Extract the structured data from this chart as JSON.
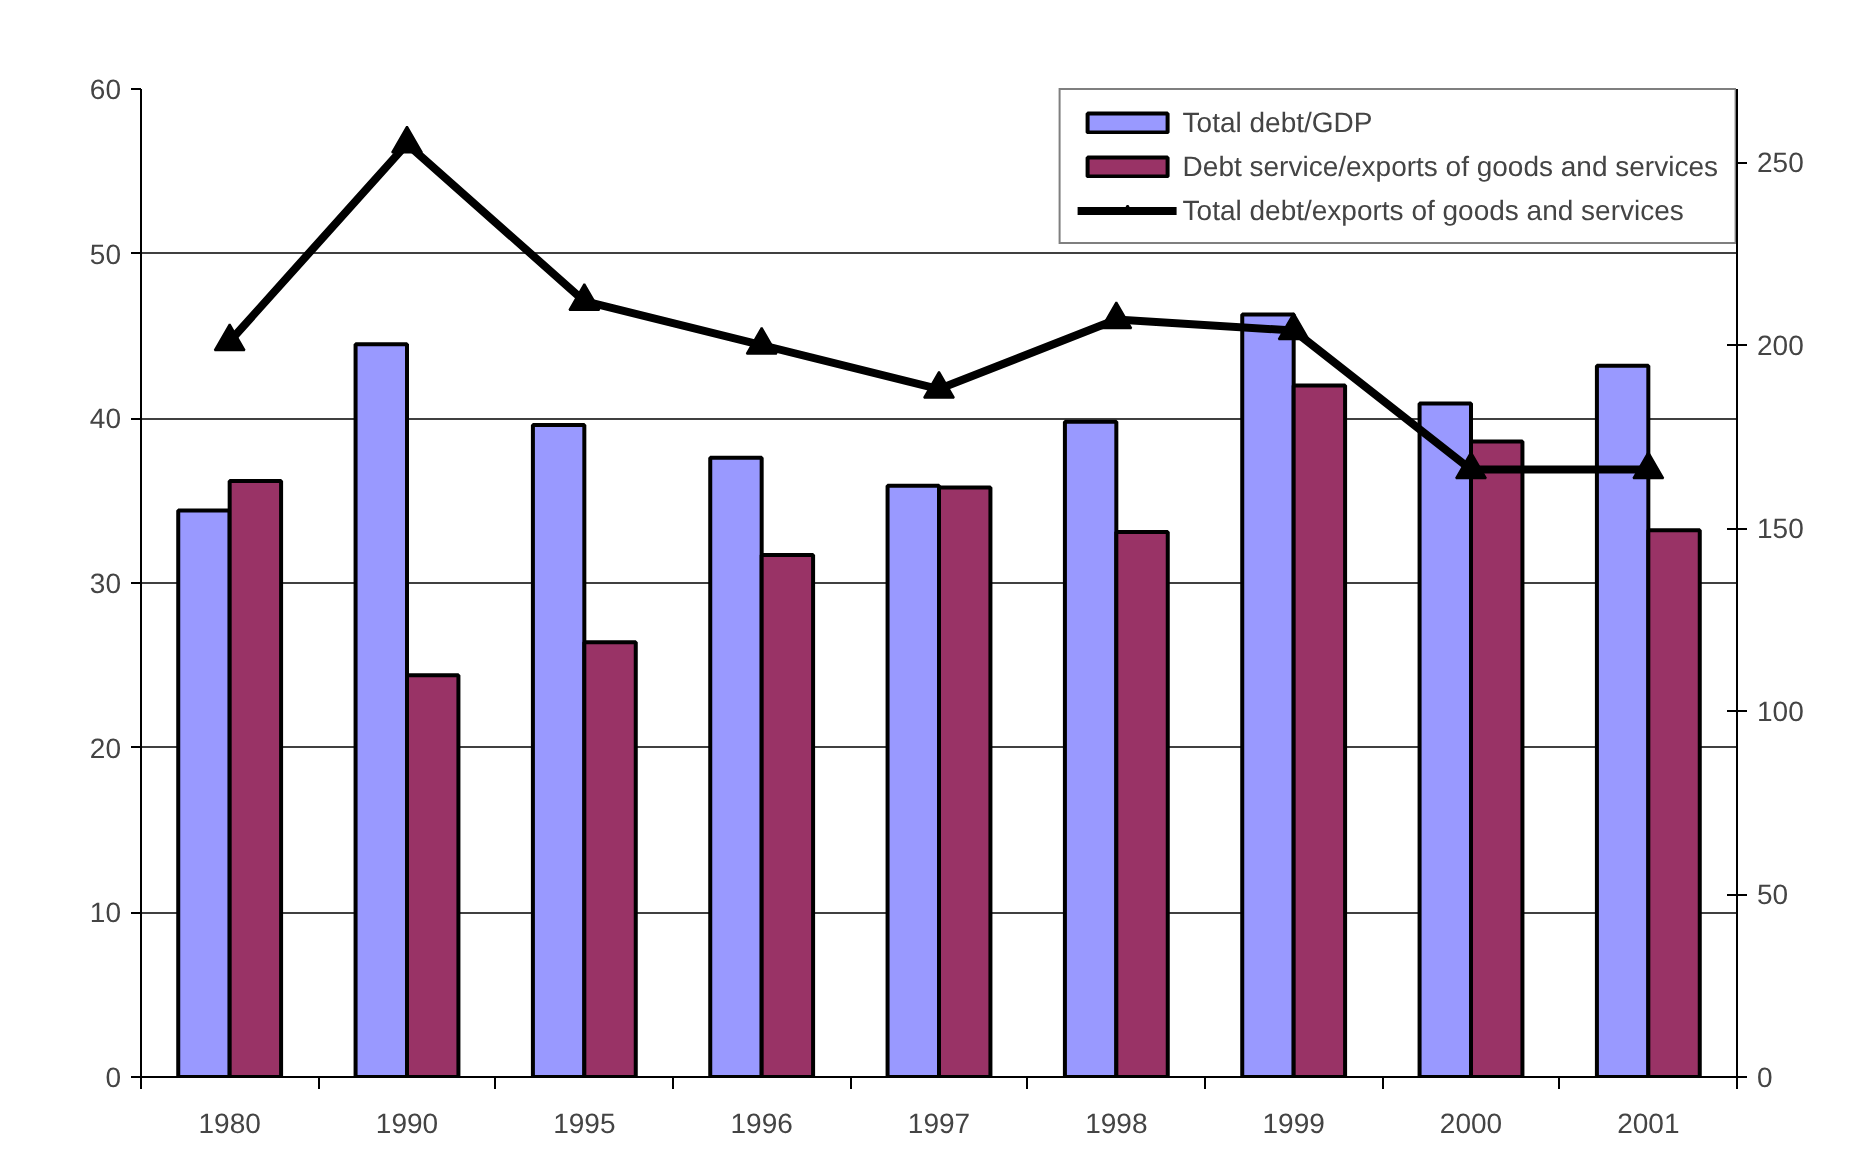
{
  "chart_data": {
    "type": "bar",
    "categories": [
      "1980",
      "1990",
      "1995",
      "1996",
      "1997",
      "1998",
      "1999",
      "2000",
      "2001"
    ],
    "series": [
      {
        "name": "Total debt/GDP",
        "color": "#9999ff",
        "values": [
          34.4,
          44.5,
          39.6,
          37.6,
          35.9,
          39.8,
          46.3,
          40.9,
          43.2
        ]
      },
      {
        "name": "Debt service/exports of goods and services",
        "color": "#993366",
        "values": [
          36.2,
          24.4,
          26.4,
          31.7,
          35.8,
          33.1,
          42.0,
          38.6,
          33.2
        ]
      },
      {
        "name": "Total debt/exports of goods and services",
        "type": "line",
        "axis": "y2",
        "marker": "triangle",
        "color": "#000000",
        "values": [
          201,
          255,
          212,
          200,
          188,
          207,
          204,
          166,
          166
        ]
      }
    ],
    "ylim": [
      0,
      60
    ],
    "yticks": [
      0,
      10,
      20,
      30,
      40,
      50,
      60
    ],
    "y2lim": [
      0,
      270
    ],
    "y2ticks": [
      0,
      50,
      100,
      150,
      200,
      250
    ],
    "grid": "y",
    "legend": "top right"
  }
}
